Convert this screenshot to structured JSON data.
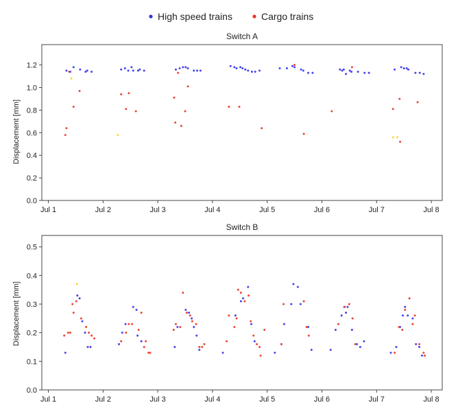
{
  "legend": {
    "items": [
      {
        "label": "High speed trains",
        "color": "#3333dd"
      },
      {
        "label": "Cargo trains",
        "color": "#ee3322"
      }
    ]
  },
  "chart_data": [
    {
      "type": "scatter",
      "title": "Switch A",
      "ylabel": "Displacement [mm]",
      "xlabel": "",
      "ylim": [
        0,
        1.38
      ],
      "xlim": [
        0.88,
        8.2
      ],
      "yticks": [
        "0.0",
        "0.2",
        "0.4",
        "0.6",
        "0.8",
        "1.0",
        "1.2"
      ],
      "xticks": [
        "Jul 1",
        "Jul 2",
        "Jul 3",
        "Jul 4",
        "Jul 5",
        "Jul 6",
        "Jul 7",
        "Jul 8"
      ],
      "grid": false,
      "series": [
        {
          "name": "High speed trains",
          "color": "#4444ee",
          "x": [
            1.33,
            1.4,
            1.46,
            1.58,
            1.68,
            1.71,
            1.79,
            2.33,
            2.4,
            2.46,
            2.52,
            2.55,
            2.64,
            2.67,
            2.75,
            3.33,
            3.4,
            3.46,
            3.51,
            3.55,
            3.66,
            3.72,
            3.78,
            4.33,
            4.4,
            4.44,
            4.51,
            4.55,
            4.6,
            4.65,
            4.72,
            4.78,
            4.86,
            5.23,
            5.36,
            5.46,
            5.5,
            5.62,
            5.66,
            5.75,
            5.83,
            6.33,
            6.37,
            6.4,
            6.44,
            6.51,
            6.54,
            6.66,
            6.78,
            6.86,
            7.33,
            7.45,
            7.5,
            7.55,
            7.58,
            7.71,
            7.79,
            7.86
          ],
          "y": [
            1.15,
            1.14,
            1.18,
            1.16,
            1.14,
            1.15,
            1.14,
            1.16,
            1.17,
            1.15,
            1.18,
            1.15,
            1.15,
            1.16,
            1.15,
            1.16,
            1.17,
            1.18,
            1.18,
            1.17,
            1.15,
            1.15,
            1.15,
            1.19,
            1.18,
            1.17,
            1.18,
            1.17,
            1.16,
            1.15,
            1.14,
            1.14,
            1.15,
            1.17,
            1.17,
            1.19,
            1.18,
            1.16,
            1.15,
            1.13,
            1.13,
            1.16,
            1.15,
            1.16,
            1.12,
            1.15,
            1.14,
            1.14,
            1.13,
            1.13,
            1.16,
            1.18,
            1.17,
            1.17,
            1.16,
            1.13,
            1.13,
            1.12
          ]
        },
        {
          "name": "Cargo trains",
          "color": "#ee4433",
          "x": [
            1.31,
            1.33,
            1.38,
            1.46,
            1.57,
            2.33,
            2.42,
            2.47,
            2.6,
            3.3,
            3.32,
            3.37,
            3.43,
            3.5,
            3.55,
            4.3,
            4.49,
            4.9,
            5.5,
            5.67,
            6.18,
            6.55,
            7.3,
            7.42,
            7.43,
            7.75
          ],
          "y": [
            0.58,
            0.64,
            1.14,
            0.83,
            0.97,
            0.94,
            0.81,
            0.95,
            0.79,
            0.91,
            0.69,
            1.13,
            0.66,
            0.79,
            1.01,
            0.83,
            0.83,
            0.64,
            1.2,
            0.59,
            0.79,
            1.18,
            0.81,
            0.9,
            0.52,
            0.87
          ]
        },
        {
          "name": "",
          "color": "#ffd633",
          "x": [
            1.42,
            2.27,
            7.3,
            7.38
          ],
          "y": [
            1.08,
            0.58,
            0.56,
            0.56
          ]
        }
      ]
    },
    {
      "type": "scatter",
      "title": "Switch B",
      "ylabel": "Displacement [mm]",
      "xlabel": "",
      "ylim": [
        0,
        0.54
      ],
      "xlim": [
        0.88,
        8.2
      ],
      "yticks": [
        "0.0",
        "0.1",
        "0.2",
        "0.3",
        "0.4",
        "0.5"
      ],
      "xticks": [
        "Jul 1",
        "Jul 2",
        "Jul 3",
        "Jul 4",
        "Jul 5",
        "Jul 6",
        "Jul 7",
        "Jul 8"
      ],
      "grid": false,
      "series": [
        {
          "name": "High speed trains",
          "color": "#4444ee",
          "x": [
            1.31,
            1.53,
            1.57,
            1.62,
            1.67,
            1.72,
            1.77,
            2.29,
            2.35,
            2.41,
            2.55,
            2.61,
            2.63,
            2.7,
            3.31,
            3.36,
            3.51,
            3.57,
            3.62,
            3.66,
            3.71,
            3.76,
            4.19,
            4.42,
            4.52,
            4.56,
            4.65,
            4.71,
            4.77,
            5.14,
            5.26,
            5.31,
            5.44,
            5.48,
            5.56,
            5.61,
            5.75,
            5.81,
            6.16,
            6.25,
            6.36,
            6.41,
            6.44,
            6.47,
            6.55,
            6.64,
            6.7,
            6.77,
            7.26,
            7.36,
            7.43,
            7.48,
            7.52,
            7.57,
            7.66,
            7.72,
            7.78,
            7.83
          ],
          "y": [
            0.13,
            0.33,
            0.32,
            0.24,
            0.2,
            0.15,
            0.15,
            0.16,
            0.2,
            0.23,
            0.29,
            0.28,
            0.19,
            0.17,
            0.15,
            0.22,
            0.28,
            0.27,
            0.25,
            0.22,
            0.19,
            0.14,
            0.13,
            0.26,
            0.31,
            0.32,
            0.36,
            0.23,
            0.17,
            0.13,
            0.16,
            0.23,
            0.3,
            0.37,
            0.36,
            0.3,
            0.22,
            0.14,
            0.14,
            0.21,
            0.26,
            0.29,
            0.27,
            0.29,
            0.21,
            0.16,
            0.15,
            0.17,
            0.13,
            0.15,
            0.22,
            0.26,
            0.29,
            0.26,
            0.25,
            0.16,
            0.15,
            0.12
          ]
        },
        {
          "name": "Cargo trains",
          "color": "#ee4433",
          "x": [
            1.29,
            1.36,
            1.4,
            1.44,
            1.46,
            1.51,
            1.6,
            1.69,
            1.74,
            1.79,
            1.84,
            2.33,
            2.42,
            2.47,
            2.53,
            2.65,
            2.7,
            2.75,
            2.78,
            2.83,
            2.86,
            3.29,
            3.33,
            3.41,
            3.46,
            3.53,
            3.59,
            3.63,
            3.7,
            3.76,
            3.81,
            3.85,
            4.26,
            4.3,
            4.4,
            4.44,
            4.47,
            4.52,
            4.59,
            4.66,
            4.7,
            4.75,
            4.81,
            4.86,
            4.88,
            4.95,
            5.26,
            5.3,
            5.67,
            5.72,
            5.76,
            6.3,
            6.42,
            6.5,
            6.56,
            6.61,
            7.33,
            7.41,
            7.47,
            7.52,
            7.6,
            7.66,
            7.7,
            7.78,
            7.86,
            7.88
          ],
          "y": [
            0.19,
            0.2,
            0.2,
            0.3,
            0.27,
            0.31,
            0.25,
            0.22,
            0.2,
            0.19,
            0.18,
            0.17,
            0.2,
            0.23,
            0.23,
            0.21,
            0.27,
            0.15,
            0.17,
            0.13,
            0.13,
            0.21,
            0.23,
            0.22,
            0.34,
            0.27,
            0.26,
            0.24,
            0.23,
            0.15,
            0.15,
            0.16,
            0.17,
            0.26,
            0.22,
            0.25,
            0.35,
            0.34,
            0.31,
            0.33,
            0.24,
            0.19,
            0.16,
            0.15,
            0.12,
            0.21,
            0.16,
            0.3,
            0.31,
            0.22,
            0.19,
            0.23,
            0.29,
            0.3,
            0.25,
            0.16,
            0.13,
            0.22,
            0.21,
            0.28,
            0.32,
            0.23,
            0.26,
            0.16,
            0.13,
            0.12
          ]
        },
        {
          "name": "",
          "color": "#ffd633",
          "x": [
            1.52
          ],
          "y": [
            0.37
          ]
        }
      ]
    }
  ]
}
